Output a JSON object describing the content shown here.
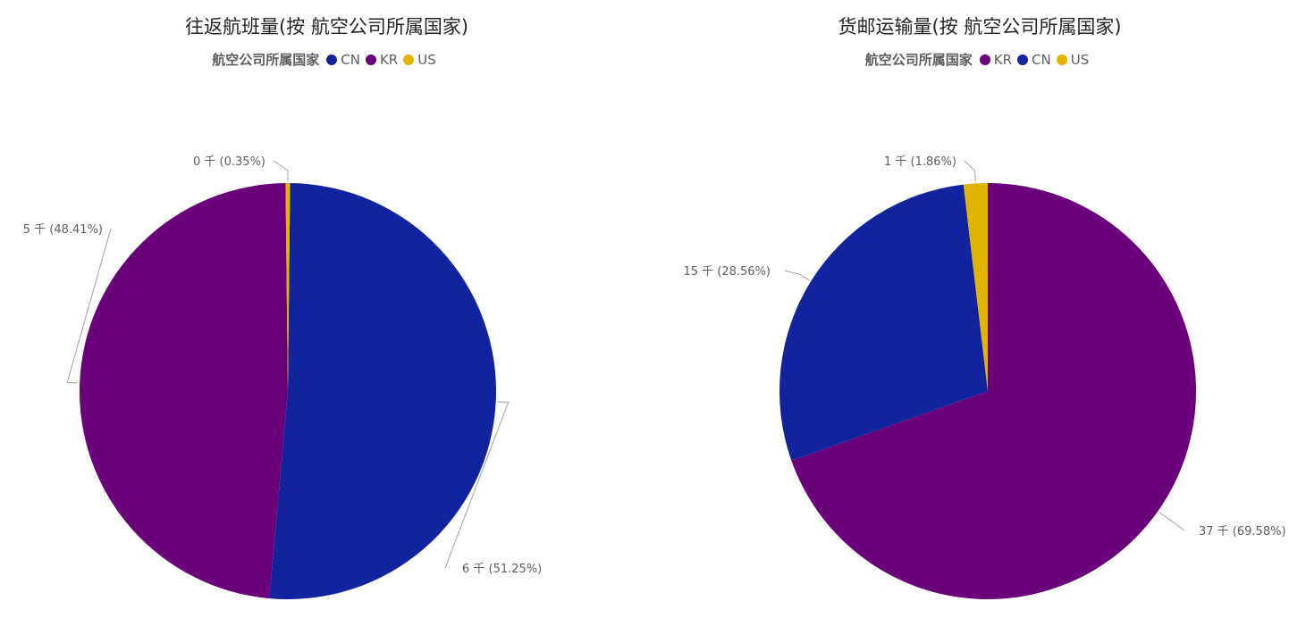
{
  "chart_data": [
    {
      "type": "pie",
      "title": "往返航班量(按 航空公司所属国家)",
      "legend_title": "航空公司所属国家",
      "legend_position": "top-center",
      "legend": [
        {
          "name": "CN",
          "color": "#12239e"
        },
        {
          "name": "KR",
          "color": "#6b007b"
        },
        {
          "name": "US",
          "color": "#e0b400"
        }
      ],
      "slices": [
        {
          "name": "CN",
          "label": "6 千 (51.25%)",
          "percent": 51.25,
          "color": "#12239e"
        },
        {
          "name": "KR",
          "label": "5 千 (48.41%)",
          "percent": 48.41,
          "color": "#6b007b"
        },
        {
          "name": "US",
          "label": "0 千 (0.35%)",
          "percent": 0.35,
          "color": "#e0b400"
        }
      ]
    },
    {
      "type": "pie",
      "title": "货邮运输量(按 航空公司所属国家)",
      "legend_title": "航空公司所属国家",
      "legend_position": "top-center",
      "legend": [
        {
          "name": "KR",
          "color": "#6b007b"
        },
        {
          "name": "CN",
          "color": "#12239e"
        },
        {
          "name": "US",
          "color": "#e0b400"
        }
      ],
      "slices": [
        {
          "name": "KR",
          "label": "37 千 (69.58%)",
          "percent": 69.58,
          "color": "#6b007b"
        },
        {
          "name": "CN",
          "label": "15 千 (28.56%)",
          "percent": 28.56,
          "color": "#12239e"
        },
        {
          "name": "US",
          "label": "1 千 (1.86%)",
          "percent": 1.86,
          "color": "#e0b400"
        }
      ]
    }
  ]
}
